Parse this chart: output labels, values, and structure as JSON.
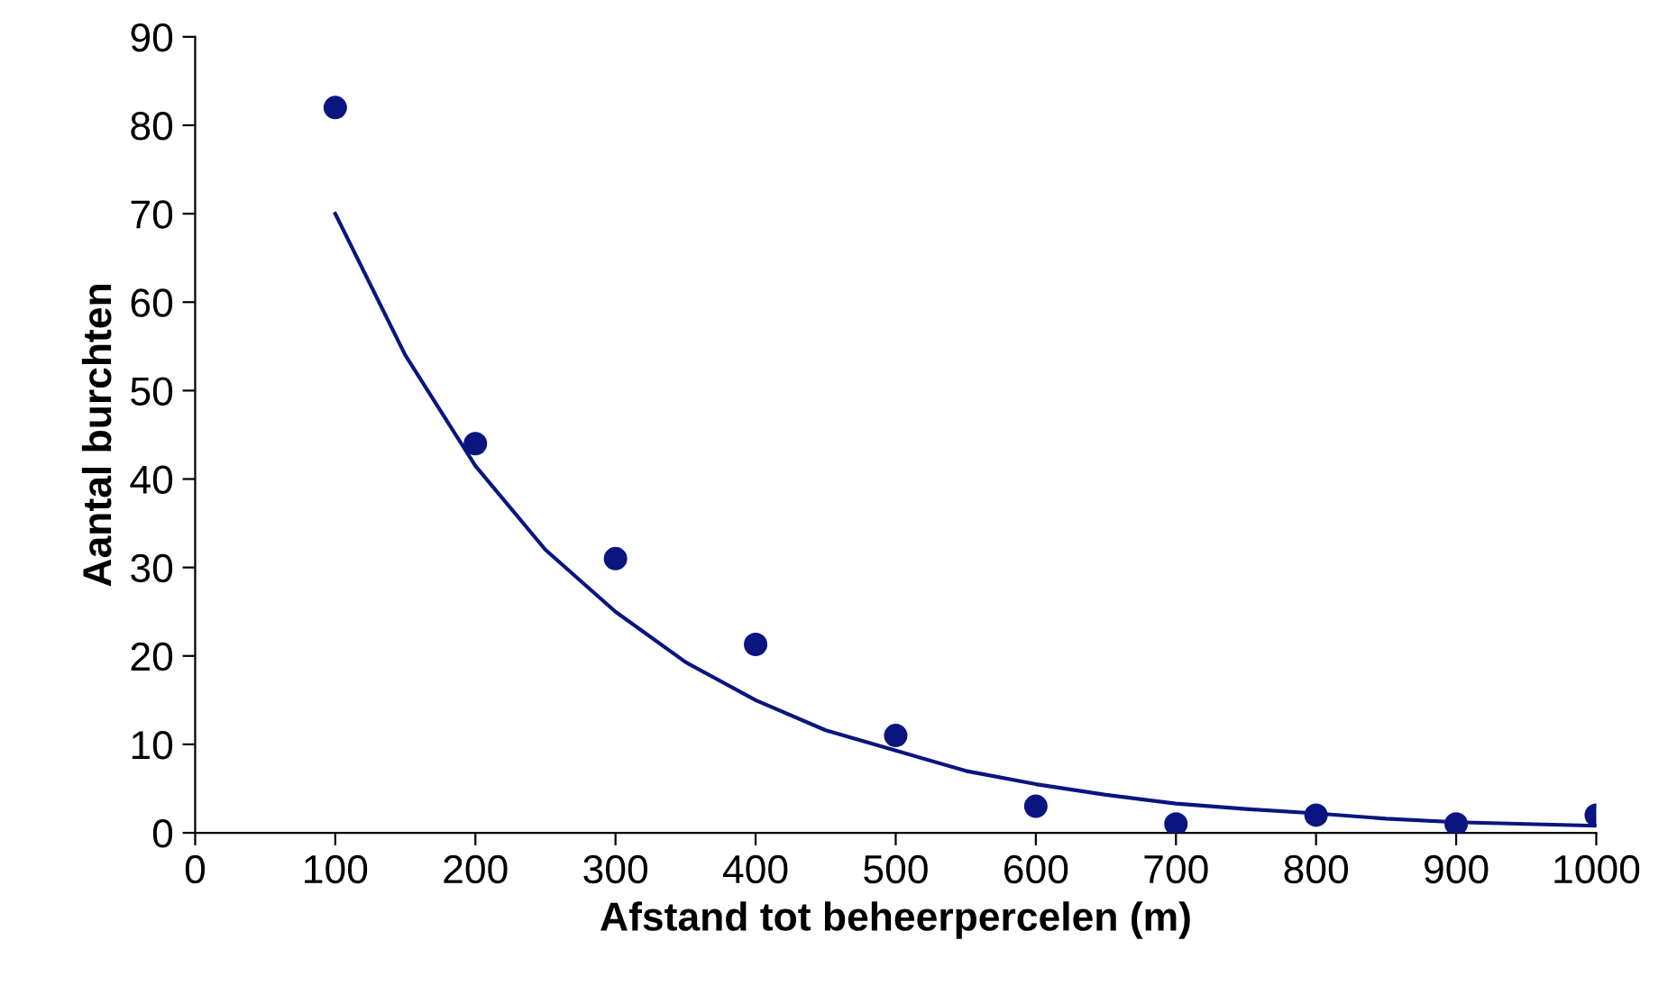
{
  "chart_data": {
    "type": "scatter",
    "xlabel": "Afstand tot beheerpercelen (m)",
    "ylabel": "Aantal burchten",
    "x": [
      100,
      200,
      300,
      400,
      500,
      600,
      700,
      800,
      900,
      1000
    ],
    "series": [
      {
        "color": "#0a1580",
        "marker": "circle",
        "values": [
          82,
          44,
          31,
          21.3,
          11,
          3,
          1,
          2,
          1,
          2
        ]
      },
      {
        "type": "line",
        "color": "#0a1580",
        "x": [
          100,
          150,
          200,
          250,
          300,
          350,
          400,
          450,
          500,
          550,
          600,
          650,
          700,
          750,
          800,
          850,
          900,
          950,
          1000
        ],
        "values": [
          70,
          54,
          41.5,
          32,
          25,
          19.3,
          15,
          11.6,
          9.3,
          7,
          5.5,
          4.3,
          3.3,
          2.7,
          2.2,
          1.6,
          1.2,
          1,
          0.8
        ]
      }
    ],
    "xlim": [
      0,
      1000
    ],
    "xticks": [
      0,
      100,
      200,
      300,
      400,
      500,
      600,
      700,
      800,
      900,
      1000
    ],
    "ylim": [
      0,
      90
    ],
    "yticks": [
      0,
      10,
      20,
      30,
      40,
      50,
      60,
      70,
      80,
      90
    ],
    "grid": false,
    "legend": false
  }
}
